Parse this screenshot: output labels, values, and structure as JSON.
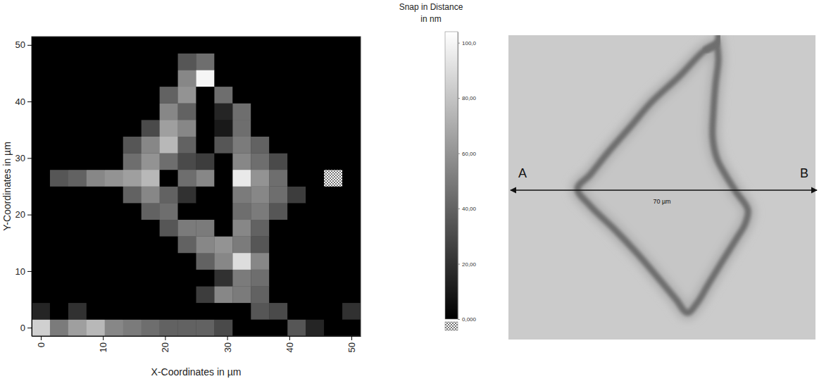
{
  "chart_data": {
    "type": "heatmap",
    "xlabel": "X-Coordinates in µm",
    "ylabel": "Y-Coordinates in µm",
    "x": [
      0,
      2.94,
      5.88,
      8.82,
      11.76,
      14.71,
      17.65,
      20.59,
      23.53,
      26.47,
      29.41,
      32.35,
      35.29,
      38.24,
      41.18,
      44.12,
      47.06,
      50
    ],
    "y": [
      0,
      2.94,
      5.88,
      8.82,
      11.76,
      14.71,
      17.65,
      20.59,
      23.53,
      26.47,
      29.41,
      32.35,
      35.29,
      38.24,
      41.18,
      44.12,
      47.06,
      50
    ],
    "xlim": [
      -1.47,
      51.47
    ],
    "ylim": [
      -1.47,
      51.47
    ],
    "xticks": [
      0,
      10,
      20,
      30,
      40,
      50
    ],
    "yticks": [
      0,
      10,
      20,
      30,
      40,
      50
    ],
    "cells": [
      [
        85,
        50,
        65,
        75,
        55,
        50,
        45,
        40,
        40,
        40,
        30,
        0,
        0,
        0,
        35,
        15,
        0,
        0
      ],
      [
        15,
        0,
        20,
        0,
        0,
        0,
        0,
        0,
        0,
        0,
        0,
        0,
        35,
        30,
        0,
        0,
        0,
        20
      ],
      [
        0,
        0,
        0,
        0,
        0,
        0,
        0,
        0,
        0,
        25,
        55,
        50,
        40,
        0,
        0,
        0,
        0,
        0
      ],
      [
        0,
        0,
        0,
        0,
        0,
        0,
        0,
        0,
        0,
        0,
        20,
        50,
        45,
        0,
        0,
        0,
        0,
        0
      ],
      [
        0,
        0,
        0,
        0,
        0,
        0,
        0,
        0,
        0,
        40,
        55,
        90,
        55,
        0,
        0,
        0,
        0,
        0
      ],
      [
        0,
        0,
        0,
        0,
        0,
        0,
        0,
        0,
        40,
        55,
        60,
        50,
        35,
        0,
        0,
        0,
        0,
        0
      ],
      [
        0,
        0,
        0,
        0,
        0,
        0,
        0,
        35,
        50,
        50,
        0,
        55,
        40,
        0,
        0,
        0,
        0,
        0
      ],
      [
        0,
        0,
        0,
        0,
        0,
        0,
        40,
        45,
        0,
        0,
        0,
        45,
        50,
        35,
        0,
        0,
        0,
        0
      ],
      [
        0,
        0,
        0,
        0,
        0,
        40,
        55,
        40,
        20,
        0,
        0,
        50,
        55,
        45,
        25,
        0,
        0,
        0
      ],
      [
        0,
        35,
        40,
        55,
        60,
        65,
        75,
        0,
        45,
        55,
        0,
        95,
        60,
        45,
        0,
        0,
        null,
        0
      ],
      [
        0,
        0,
        0,
        0,
        0,
        45,
        60,
        45,
        30,
        25,
        0,
        55,
        45,
        30,
        0,
        0,
        0,
        0
      ],
      [
        0,
        0,
        0,
        0,
        0,
        35,
        55,
        75,
        40,
        0,
        35,
        50,
        40,
        0,
        0,
        0,
        0,
        0
      ],
      [
        0,
        0,
        0,
        0,
        0,
        0,
        30,
        65,
        55,
        0,
        10,
        45,
        0,
        0,
        0,
        0,
        0,
        0
      ],
      [
        0,
        0,
        0,
        0,
        0,
        0,
        0,
        55,
        40,
        0,
        15,
        45,
        0,
        0,
        0,
        0,
        0,
        0
      ],
      [
        0,
        0,
        0,
        0,
        0,
        0,
        0,
        40,
        60,
        0,
        45,
        0,
        0,
        0,
        0,
        0,
        0,
        0
      ],
      [
        0,
        0,
        0,
        0,
        0,
        0,
        0,
        0,
        55,
        100,
        0,
        0,
        0,
        0,
        0,
        0,
        0,
        0
      ],
      [
        0,
        0,
        0,
        0,
        0,
        0,
        0,
        0,
        35,
        45,
        0,
        0,
        0,
        0,
        0,
        0,
        0,
        0
      ],
      [
        0,
        0,
        0,
        0,
        0,
        0,
        0,
        0,
        0,
        0,
        0,
        0,
        0,
        0,
        0,
        0,
        0,
        0
      ]
    ],
    "colorbar": {
      "title": [
        "Snap in Distance",
        "in nm"
      ],
      "range": [
        0,
        104
      ],
      "ticks": [
        {
          "value": 0,
          "label": "0,000"
        },
        {
          "value": 20,
          "label": "20,00"
        },
        {
          "value": 40,
          "label": "40,00"
        },
        {
          "value": 60,
          "label": "60,00"
        },
        {
          "value": 80,
          "label": "80,00"
        },
        {
          "value": 100,
          "label": "100,0"
        }
      ]
    }
  },
  "micrograph": {
    "start_label": "A",
    "end_label": "B",
    "length_label": "70 µm"
  }
}
